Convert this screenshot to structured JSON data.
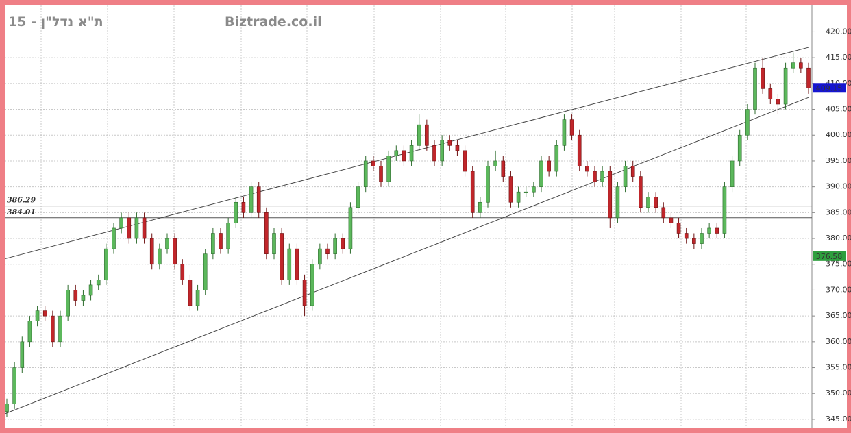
{
  "chart_data": {
    "type": "candlestick",
    "title": "ת\"א נדל\"ן - 15",
    "watermark": "Biztrade.co.il",
    "ylim": [
      343.4,
      425.1
    ],
    "yticks": [
      {
        "value": 345,
        "label": "345.00"
      },
      {
        "value": 350,
        "label": "350.00"
      },
      {
        "value": 355,
        "label": "355.00"
      },
      {
        "value": 360,
        "label": "360.00"
      },
      {
        "value": 365,
        "label": "365.00"
      },
      {
        "value": 370,
        "label": "370.00"
      },
      {
        "value": 375,
        "label": "375.00"
      },
      {
        "value": 380,
        "label": "380.00"
      },
      {
        "value": 385,
        "label": "385.00"
      },
      {
        "value": 390,
        "label": "390.00"
      },
      {
        "value": 395,
        "label": "395.00"
      },
      {
        "value": 400,
        "label": "400.00"
      },
      {
        "value": 405,
        "label": "405.00"
      },
      {
        "value": 410,
        "label": "410.00"
      },
      {
        "value": 415,
        "label": "415.00"
      },
      {
        "value": 420,
        "label": "420.00"
      }
    ],
    "grid": true,
    "up_color": "#5cb85c",
    "down_color": "#c0262b",
    "open": [
      346.5,
      348,
      355,
      360,
      364,
      366,
      365,
      360,
      365,
      370,
      368,
      369,
      371,
      372,
      378,
      382,
      384,
      380,
      384,
      380,
      375,
      378,
      380,
      375,
      372,
      367,
      370,
      377,
      381,
      378,
      383,
      387,
      385,
      390,
      385,
      377,
      381,
      372,
      378,
      372,
      367,
      375,
      378,
      377,
      380,
      378,
      386,
      390,
      395,
      394,
      391,
      396,
      397,
      395,
      398,
      402,
      398,
      395,
      399,
      398,
      397,
      393,
      385,
      387,
      394,
      395,
      392,
      387,
      389,
      389,
      390,
      395,
      393,
      398,
      403,
      400,
      394,
      393,
      391,
      393,
      384,
      390,
      394,
      392,
      386,
      388,
      386,
      384,
      383,
      381,
      380,
      379,
      381,
      382,
      381,
      390,
      395,
      400,
      405,
      413,
      409,
      407,
      406,
      413,
      414,
      413
    ],
    "high": [
      349,
      356,
      361,
      365,
      367,
      367,
      366,
      366,
      371,
      371,
      370,
      372,
      373,
      379,
      383,
      385,
      385,
      385,
      385,
      381,
      379,
      381,
      381,
      376,
      373,
      371,
      378,
      382,
      382,
      384,
      388,
      388,
      391,
      391,
      386,
      382,
      382,
      379,
      379,
      373,
      376,
      379,
      379,
      381,
      381,
      387,
      391,
      396,
      396,
      395,
      397,
      398,
      398,
      399,
      404,
      403,
      399,
      400,
      400,
      399,
      398,
      394,
      388,
      395,
      397,
      396,
      393,
      390,
      390,
      391,
      396,
      396,
      399,
      404,
      404,
      401,
      395,
      394,
      394,
      394,
      391,
      395,
      395,
      393,
      389,
      389,
      387,
      385,
      384,
      382,
      381,
      382,
      383,
      383,
      391,
      396,
      401,
      406,
      414,
      415,
      410,
      408,
      414,
      416,
      415,
      414
    ],
    "low": [
      345.5,
      347,
      354,
      359,
      363,
      364,
      359,
      359,
      364,
      367,
      367,
      368,
      370,
      371,
      377,
      381,
      379,
      379,
      379,
      374,
      374,
      377,
      374,
      371,
      366,
      366,
      369,
      376,
      377,
      377,
      382,
      384,
      384,
      384,
      376,
      376,
      371,
      371,
      371,
      365,
      366,
      374,
      376,
      376,
      377,
      377,
      385,
      389,
      393,
      390,
      390,
      395,
      394,
      394,
      397,
      397,
      394,
      394,
      397,
      396,
      392,
      384,
      384,
      386,
      393,
      391,
      386,
      386,
      388,
      388,
      389,
      392,
      392,
      397,
      399,
      393,
      392,
      390,
      390,
      382,
      383,
      389,
      391,
      385,
      385,
      385,
      383,
      382,
      380,
      379,
      378,
      378,
      380,
      380,
      380,
      389,
      394,
      399,
      404,
      408,
      406,
      404,
      405,
      412,
      412,
      408
    ],
    "close": [
      348,
      355,
      360,
      364,
      366,
      365,
      360,
      365,
      370,
      368,
      369,
      371,
      372,
      378,
      382,
      384,
      380,
      384,
      380,
      375,
      378,
      380,
      375,
      372,
      367,
      370,
      377,
      381,
      378,
      383,
      387,
      385,
      390,
      385,
      377,
      381,
      372,
      378,
      372,
      367,
      375,
      378,
      377,
      380,
      378,
      386,
      390,
      395,
      394,
      391,
      396,
      397,
      395,
      398,
      402,
      398,
      395,
      399,
      398,
      397,
      393,
      385,
      387,
      394,
      395,
      392,
      387,
      389,
      389,
      390,
      395,
      393,
      398,
      403,
      400,
      394,
      393,
      391,
      393,
      384,
      390,
      394,
      392,
      386,
      388,
      386,
      384,
      383,
      381,
      380,
      379,
      381,
      382,
      381,
      390,
      395,
      400,
      405,
      413,
      409,
      407,
      406,
      413,
      414,
      413,
      409.15
    ],
    "levels": [
      386.29,
      384.01
    ],
    "level_color": "#d01c24",
    "price_tags": [
      {
        "value": 409.15,
        "color": "#1515d0"
      },
      {
        "value": 376.58,
        "color": "#2e9e3e"
      }
    ],
    "trendlines": [
      {
        "start": [
          0,
          376.1
        ],
        "end": [
          105,
          417
        ]
      },
      {
        "start": [
          0,
          346.1
        ],
        "end": [
          105,
          407.3
        ]
      }
    ]
  }
}
